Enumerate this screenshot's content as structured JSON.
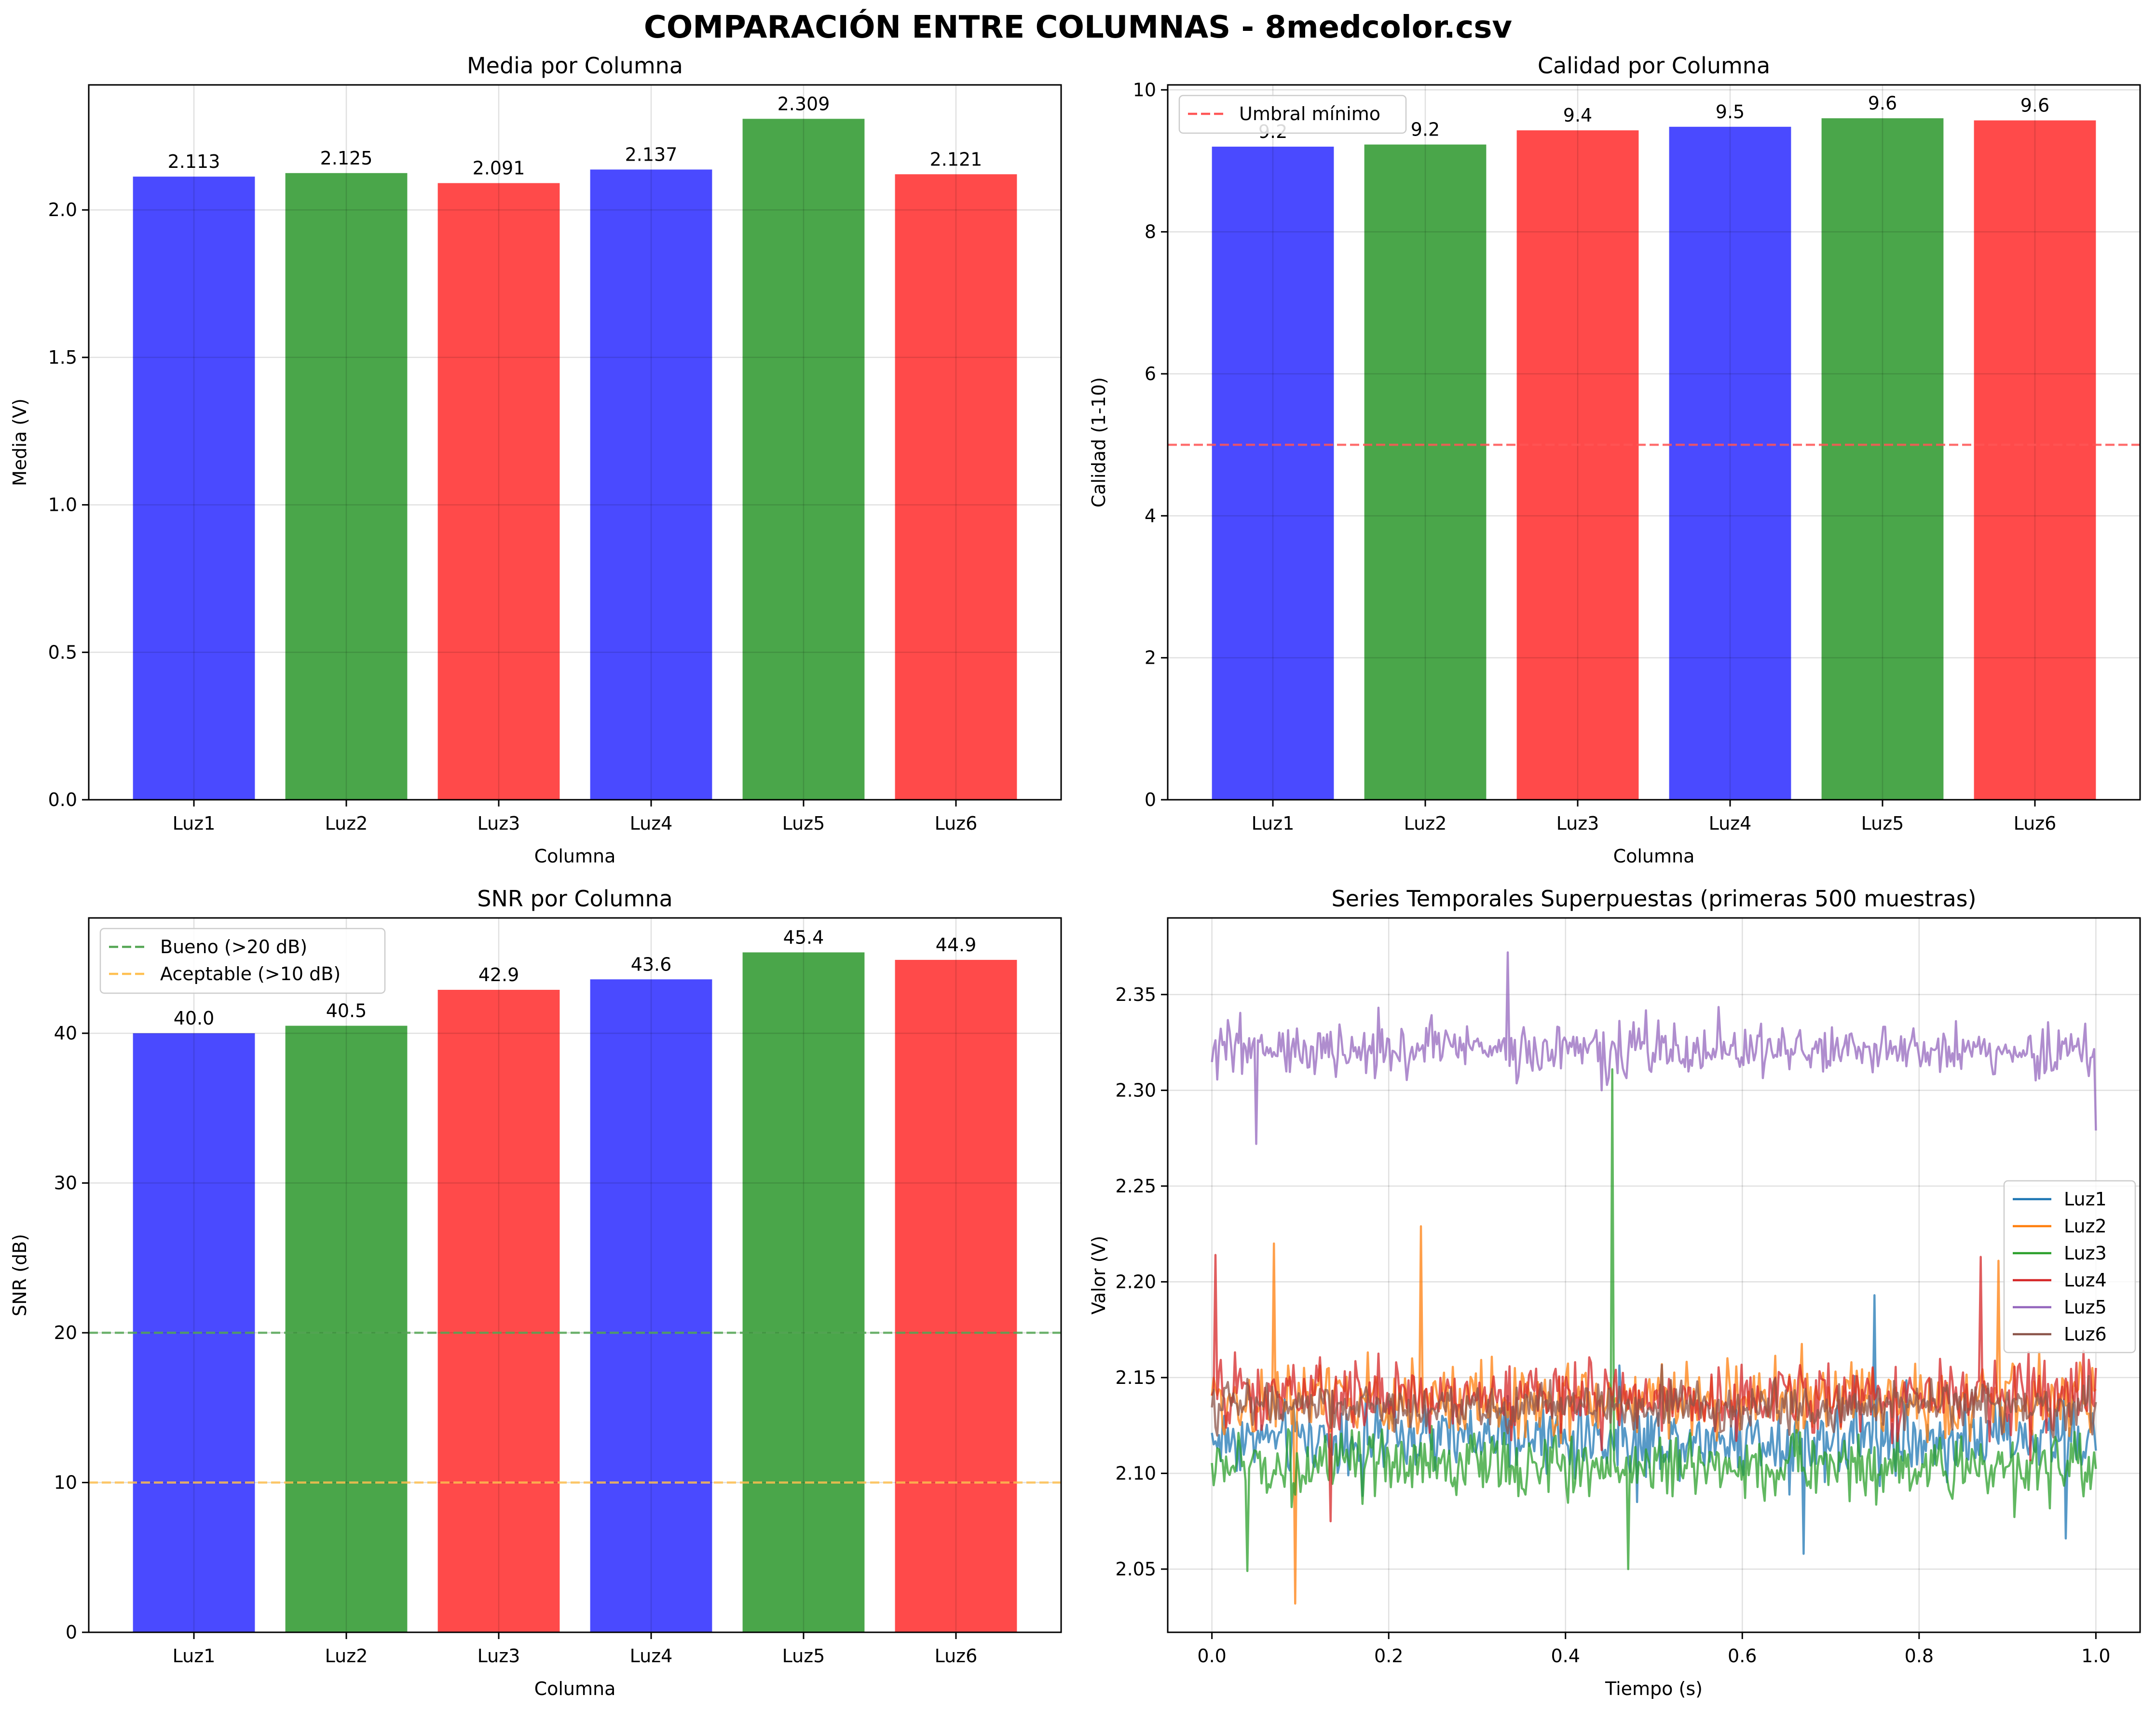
{
  "figure": {
    "suptitle": "COMPARACIÓN ENTRE COLUMNAS - 8medcolor.csv"
  },
  "colors": {
    "blue": "#4a4aff",
    "green": "#4aa64a",
    "red": "#ff4a4a",
    "refRed": "#ff5555",
    "refGreen": "#55a655",
    "refOrange": "#ffc050",
    "luz1": "#1f77b4",
    "luz2": "#ff7f0e",
    "luz3": "#2ca02c",
    "luz4": "#d62728",
    "luz5": "#9467bd",
    "luz6": "#8c564b"
  },
  "chart_data": [
    {
      "id": "media",
      "type": "bar",
      "title": "Media por Columna",
      "xlabel": "Columna",
      "ylabel": "Media (V)",
      "categories": [
        "Luz1",
        "Luz2",
        "Luz3",
        "Luz4",
        "Luz5",
        "Luz6"
      ],
      "values": [
        2.113,
        2.125,
        2.091,
        2.137,
        2.309,
        2.121
      ],
      "value_labels": [
        "2.113",
        "2.125",
        "2.091",
        "2.137",
        "2.309",
        "2.121"
      ],
      "bar_colors": [
        "blue",
        "green",
        "red",
        "blue",
        "green",
        "red"
      ],
      "ylim": [
        0,
        2.424
      ],
      "yticks": [
        0,
        0.5,
        1.0,
        1.5,
        2.0
      ],
      "ytick_labels": [
        "0.0",
        "0.5",
        "1.0",
        "1.5",
        "2.0"
      ],
      "grid": true
    },
    {
      "id": "calidad",
      "type": "bar",
      "title": "Calidad por Columna",
      "xlabel": "Columna",
      "ylabel": "Calidad (1-10)",
      "categories": [
        "Luz1",
        "Luz2",
        "Luz3",
        "Luz4",
        "Luz5",
        "Luz6"
      ],
      "values": [
        9.2,
        9.23,
        9.43,
        9.48,
        9.6,
        9.57
      ],
      "value_labels": [
        "9.2",
        "9.2",
        "9.4",
        "9.5",
        "9.6",
        "9.6"
      ],
      "bar_colors": [
        "blue",
        "green",
        "red",
        "blue",
        "green",
        "red"
      ],
      "ylim": [
        0,
        10.07
      ],
      "yticks": [
        0,
        2,
        4,
        6,
        8,
        10
      ],
      "ytick_labels": [
        "0",
        "2",
        "4",
        "6",
        "8",
        "10"
      ],
      "reference_lines": [
        {
          "y": 5,
          "label": "Umbral mínimo",
          "color": "refRed"
        }
      ],
      "legend": "top-left",
      "grid": true
    },
    {
      "id": "snr",
      "type": "bar",
      "title": "SNR por Columna",
      "xlabel": "Columna",
      "ylabel": "SNR (dB)",
      "categories": [
        "Luz1",
        "Luz2",
        "Luz3",
        "Luz4",
        "Luz5",
        "Luz6"
      ],
      "values": [
        40.0,
        40.5,
        42.9,
        43.6,
        45.4,
        44.9
      ],
      "value_labels": [
        "40.0",
        "40.5",
        "42.9",
        "43.6",
        "45.4",
        "44.9"
      ],
      "bar_colors": [
        "blue",
        "green",
        "red",
        "blue",
        "green",
        "red"
      ],
      "ylim": [
        0,
        47.7
      ],
      "yticks": [
        0,
        10,
        20,
        30,
        40
      ],
      "ytick_labels": [
        "0",
        "10",
        "20",
        "30",
        "40"
      ],
      "reference_lines": [
        {
          "y": 20,
          "label": "Bueno (>20 dB)",
          "color": "refGreen"
        },
        {
          "y": 10,
          "label": "Aceptable (>10 dB)",
          "color": "refOrange"
        }
      ],
      "legend": "top-left",
      "grid": true
    },
    {
      "id": "series",
      "type": "line",
      "title": "Series Temporales Superpuestas (primeras 500 muestras)",
      "xlabel": "Tiempo (s)",
      "ylabel": "Valor (V)",
      "xlim": [
        -0.05,
        1.05
      ],
      "ylim": [
        2.017,
        2.39
      ],
      "xticks": [
        0.0,
        0.2,
        0.4,
        0.6,
        0.8,
        1.0
      ],
      "xtick_labels": [
        "0.0",
        "0.2",
        "0.4",
        "0.6",
        "0.8",
        "1.0"
      ],
      "yticks": [
        2.05,
        2.1,
        2.15,
        2.2,
        2.25,
        2.3,
        2.35
      ],
      "ytick_labels": [
        "2.05",
        "2.10",
        "2.15",
        "2.20",
        "2.25",
        "2.30",
        "2.35"
      ],
      "samples": 500,
      "legend": "right",
      "grid": true,
      "series": [
        {
          "name": "Luz1",
          "color": "luz1",
          "base": 2.118,
          "noise": 0.0115,
          "spikes": [
            [
              0.75,
              2.193
            ],
            [
              0.965,
              2.066
            ],
            [
              0.67,
              2.058
            ]
          ]
        },
        {
          "name": "Luz2",
          "color": "luz2",
          "base": 2.138,
          "noise": 0.012,
          "spikes": [
            [
              0.237,
              2.229
            ],
            [
              0.095,
              2.032
            ],
            [
              0.07,
              2.22
            ],
            [
              0.89,
              2.211
            ]
          ]
        },
        {
          "name": "Luz3",
          "color": "luz3",
          "base": 2.104,
          "noise": 0.0105,
          "spikes": [
            [
              0.452,
              2.311
            ],
            [
              0.04,
              2.049
            ],
            [
              0.47,
              2.05
            ]
          ]
        },
        {
          "name": "Luz4",
          "color": "luz4",
          "base": 2.14,
          "noise": 0.0115,
          "spikes": [
            [
              0.005,
              2.214
            ],
            [
              0.87,
              2.213
            ],
            [
              0.135,
              2.075
            ]
          ]
        },
        {
          "name": "Luz5",
          "color": "luz5",
          "base": 2.321,
          "noise": 0.0085,
          "spikes": [
            [
              0.335,
              2.372
            ],
            [
              0.05,
              2.272
            ],
            [
              0.44,
              2.3
            ],
            [
              1.0,
              2.279
            ]
          ]
        },
        {
          "name": "Luz6",
          "color": "luz6",
          "base": 2.135,
          "noise": 0.0075,
          "spikes": []
        }
      ]
    }
  ]
}
